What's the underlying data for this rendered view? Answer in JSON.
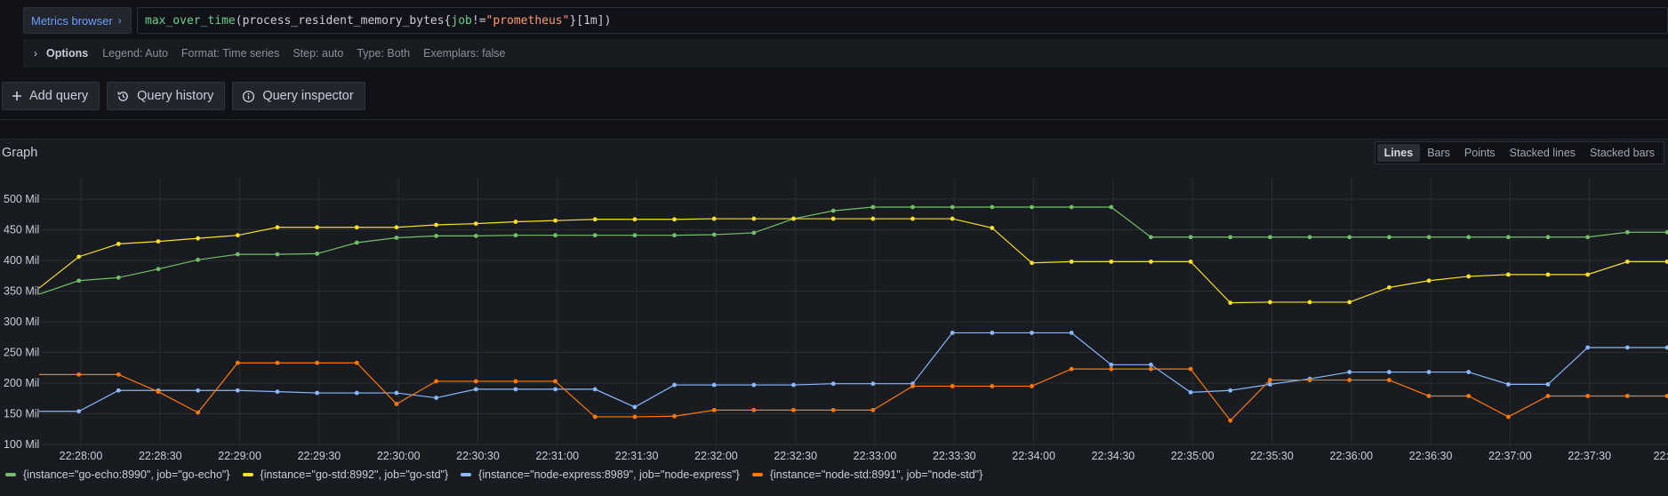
{
  "query": {
    "metrics_browser_label": "Metrics browser",
    "fn": "max_over_time",
    "metric": "(process_resident_memory_bytes{",
    "label_name": "job",
    "op": "!=",
    "label_value": "\"prometheus\"",
    "tail": "}[1m])"
  },
  "options": {
    "title": "Options",
    "legend": "Legend: Auto",
    "format": "Format: Time series",
    "step": "Step: auto",
    "type": "Type: Both",
    "exemplars": "Exemplars: false"
  },
  "buttons": {
    "add_query": "Add query",
    "query_history": "Query history",
    "query_inspector": "Query inspector"
  },
  "graph": {
    "title": "Graph",
    "modes": [
      "Lines",
      "Bars",
      "Points",
      "Stacked lines",
      "Stacked bars"
    ],
    "active_mode": "Lines"
  },
  "chart_data": {
    "type": "line",
    "y_unit": "Mil",
    "ylim": [
      100,
      500
    ],
    "yticks": [
      "100 Mil",
      "150 Mil",
      "200 Mil",
      "250 Mil",
      "300 Mil",
      "350 Mil",
      "400 Mil",
      "450 Mil",
      "500 Mil"
    ],
    "xtick_labels": [
      "22:28:00",
      "22:28:30",
      "22:29:00",
      "22:29:30",
      "22:30:00",
      "22:30:30",
      "22:31:00",
      "22:31:30",
      "22:32:00",
      "22:32:30",
      "22:33:00",
      "22:33:30",
      "22:34:00",
      "22:34:30",
      "22:35:00",
      "22:35:30",
      "22:36:00",
      "22:36:30",
      "22:37:00",
      "22:37:30",
      "22:38:"
    ],
    "grid": true,
    "legend_position": "bottom-left",
    "series": [
      {
        "name": "{instance=\"go-echo:8990\", job=\"go-echo\"}",
        "color": "#73bf69",
        "values": [
          345,
          367,
          372,
          386,
          401,
          410,
          410,
          411,
          429,
          437,
          440,
          440,
          441,
          441,
          441,
          441,
          441,
          442,
          445,
          468,
          481,
          487,
          487,
          487,
          487,
          487,
          487,
          487,
          438,
          438,
          438,
          438,
          438,
          438,
          438,
          438,
          438,
          438,
          438,
          438,
          446,
          446
        ]
      },
      {
        "name": "{instance=\"go-std:8992\", job=\"go-std\"}",
        "color": "#fade2a",
        "values": [
          355,
          406,
          427,
          431,
          436,
          441,
          454,
          454,
          454,
          454,
          458,
          460,
          463,
          465,
          467,
          467,
          467,
          468,
          468,
          468,
          468,
          468,
          468,
          468,
          453,
          396,
          398,
          398,
          398,
          398,
          331,
          332,
          332,
          332,
          356,
          367,
          374,
          377,
          377,
          377,
          398,
          398
        ]
      },
      {
        "name": "{instance=\"node-express:8989\", job=\"node-express\"}",
        "color": "#8ab8ff",
        "values": [
          154,
          154,
          188,
          188,
          188,
          188,
          186,
          184,
          184,
          184,
          176,
          190,
          190,
          190,
          190,
          161,
          197,
          197,
          197,
          197,
          199,
          199,
          199,
          282,
          282,
          282,
          282,
          230,
          230,
          185,
          188,
          198,
          207,
          218,
          218,
          218,
          218,
          198,
          198,
          258,
          258,
          258
        ]
      },
      {
        "name": "{instance=\"node-std:8991\", job=\"node-std\"}",
        "color": "#ff780a",
        "values": [
          214,
          214,
          214,
          186,
          152,
          233,
          233,
          233,
          233,
          166,
          203,
          203,
          203,
          203,
          145,
          145,
          146,
          156,
          156,
          156,
          156,
          156,
          195,
          195,
          195,
          195,
          223,
          223,
          223,
          223,
          139,
          205,
          205,
          205,
          205,
          179,
          179,
          145,
          179,
          179,
          179,
          179
        ]
      }
    ]
  }
}
